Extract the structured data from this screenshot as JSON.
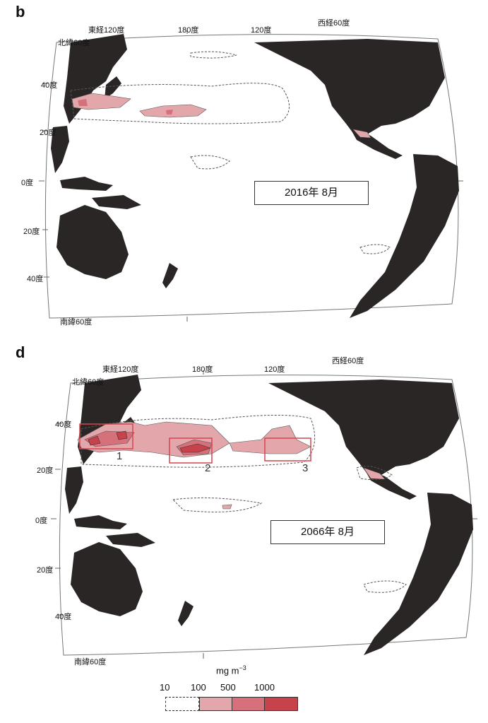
{
  "colors": {
    "land": "#2b2626",
    "ocean": "#ffffff",
    "contour_10": "#555555",
    "level_100": "#e3a6aa",
    "level_500": "#d6707a",
    "level_1000": "#c8424b",
    "box_outline": "#d4454d"
  },
  "panels": [
    {
      "letter": "b",
      "date": "2016年 8月",
      "lon_labels": [
        "東経120度",
        "180度",
        "120度",
        "西経60度"
      ],
      "lat_labels": [
        "北緯60度",
        "40度",
        "20度",
        "0度",
        "20度",
        "40度",
        "南緯60度"
      ]
    },
    {
      "letter": "d",
      "date": "2066年 8月",
      "lon_labels": [
        "東経120度",
        "180度",
        "120度",
        "西経60度"
      ],
      "lat_labels": [
        "北緯60度",
        "40度",
        "20度",
        "0度",
        "20度",
        "40度",
        "南緯60度"
      ],
      "regions": [
        "1",
        "2",
        "3"
      ]
    }
  ],
  "legend": {
    "unit_base": "mg m",
    "unit_exp": "−3",
    "ticks": [
      "10",
      "100",
      "500",
      "1000"
    ],
    "levels": [
      {
        "label": "10–100",
        "color": "#ffffff",
        "dashed": true
      },
      {
        "label": "100–500",
        "color": "#e3a6aa"
      },
      {
        "label": "500–1000",
        "color": "#d6707a"
      },
      {
        "label": "≥1000",
        "color": "#c8424b"
      }
    ]
  }
}
